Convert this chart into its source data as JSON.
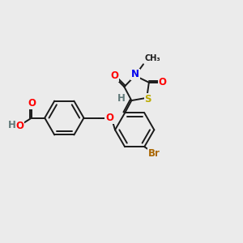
{
  "bg_color": "#ebebeb",
  "bond_color": "#1a1a1a",
  "bond_lw": 1.4,
  "atom_colors": {
    "O": "#ff0000",
    "N": "#0000ee",
    "S": "#bbaa00",
    "Br": "#aa6600",
    "H": "#607878",
    "C": "#1a1a1a"
  },
  "fs": 8.5,
  "fs_small": 7.0
}
